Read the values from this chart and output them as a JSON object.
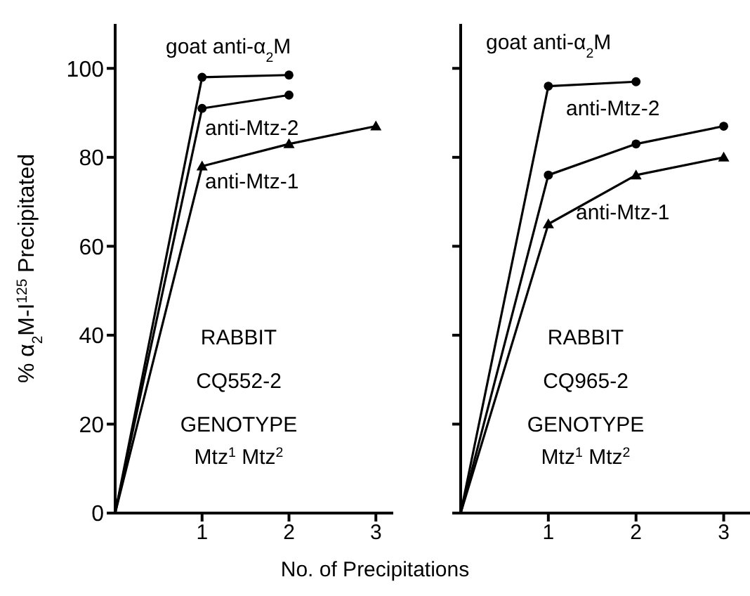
{
  "chart_data": [
    {
      "type": "line",
      "ylabel": "% α$_{2}$M-I$^{125}$ Precipitated",
      "xlabel": "No. of Precipitations",
      "xlim": [
        0,
        3.2
      ],
      "xticks": [
        1,
        2,
        3
      ],
      "ylim": [
        0,
        110
      ],
      "yticks": [
        0,
        20,
        40,
        60,
        80,
        100
      ],
      "annotations": [
        "RABBIT",
        "CQ552-2",
        "GENOTYPE",
        "Mtz$^{1}$ Mtz$^{2}$"
      ],
      "series": [
        {
          "name": "goat anti-α$_{2}$M",
          "color": "#000000",
          "marker": "circle",
          "x": [
            0,
            1,
            2
          ],
          "values": [
            0,
            98,
            98.5
          ]
        },
        {
          "name": "anti-Mtz-2",
          "color": "#000000",
          "marker": "circle",
          "x": [
            0,
            1,
            2
          ],
          "values": [
            0,
            91,
            94
          ]
        },
        {
          "name": "anti-Mtz-1",
          "color": "#000000",
          "marker": "triangle",
          "x": [
            0,
            1,
            2,
            3
          ],
          "values": [
            0,
            78,
            83,
            87
          ]
        }
      ]
    },
    {
      "type": "line",
      "xlim": [
        0,
        3.3
      ],
      "xticks": [
        1,
        2,
        3
      ],
      "ylim": [
        0,
        110
      ],
      "yticks": [
        0,
        20,
        40,
        60,
        80,
        100
      ],
      "tick_labels": "x",
      "annotations": [
        "RABBIT",
        "CQ965-2",
        "GENOTYPE",
        "Mtz$^{1}$ Mtz$^{2}$"
      ],
      "series": [
        {
          "name": "goat anti-α$_{2}$M",
          "color": "#000000",
          "marker": "circle",
          "x": [
            0,
            1,
            2
          ],
          "values": [
            0,
            96,
            97
          ]
        },
        {
          "name": "anti-Mtz-2",
          "color": "#000000",
          "marker": "circle",
          "x": [
            0,
            1,
            2,
            3
          ],
          "values": [
            0,
            76,
            83,
            87
          ]
        },
        {
          "name": "anti-Mtz-1",
          "color": "#000000",
          "marker": "triangle",
          "x": [
            0,
            1,
            2,
            3
          ],
          "values": [
            0,
            65,
            76,
            80
          ]
        }
      ]
    }
  ]
}
